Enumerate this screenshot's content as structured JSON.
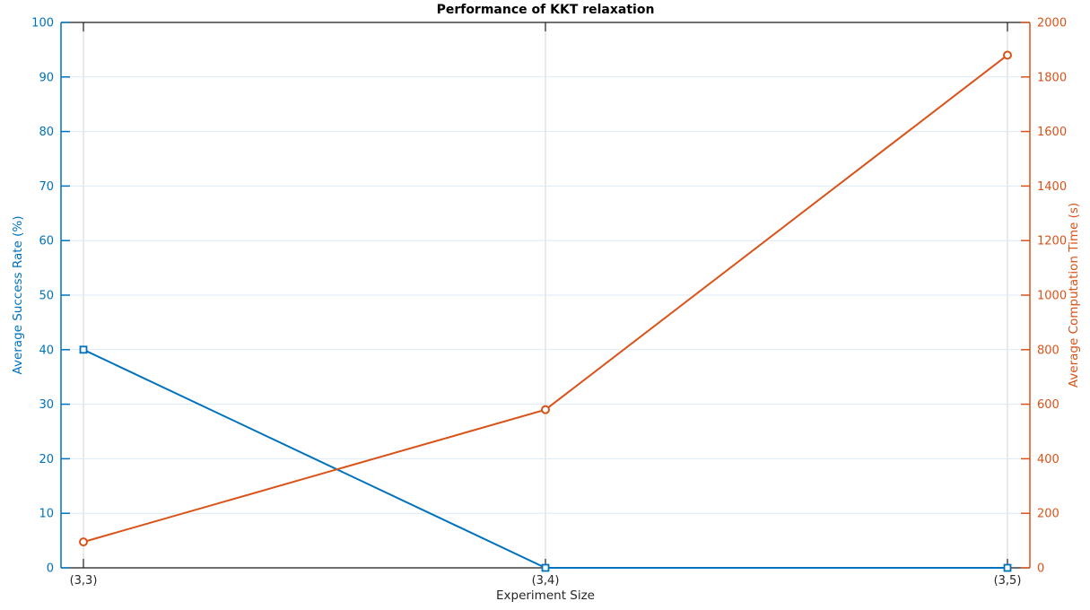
{
  "chart_data": {
    "type": "line",
    "title": "Performance of KKT relaxation",
    "xlabel": "Experiment Size",
    "categories": [
      "(3,3)",
      "(3,4)",
      "(3,5)"
    ],
    "series": [
      {
        "name": "Average Success Rate (%)",
        "axis": "left",
        "color": "#0072BD",
        "marker": "square",
        "values": [
          40,
          0,
          0
        ]
      },
      {
        "name": "Average Computation Time (s)",
        "axis": "right",
        "color": "#D95319",
        "marker": "circle",
        "values": [
          95,
          580,
          1880
        ]
      }
    ],
    "left_axis": {
      "label": "Average Success Rate (%)",
      "min": 0,
      "max": 100,
      "step": 10,
      "color": "#0072BD",
      "tick_labels": [
        "0",
        "10",
        "20",
        "30",
        "40",
        "50",
        "60",
        "70",
        "80",
        "90",
        "100"
      ]
    },
    "right_axis": {
      "label": "Average Computation Time (s)",
      "min": 0,
      "max": 2000,
      "step": 200,
      "color": "#D95319",
      "tick_labels": [
        "0",
        "200",
        "400",
        "600",
        "800",
        "1000",
        "1200",
        "1400",
        "1600",
        "1800",
        "2000"
      ]
    },
    "grid": true,
    "legend_position": "none",
    "colors": {
      "grid_horizontal": "#dce9f5",
      "grid_vertical": "#d6d6d6",
      "axis_box": "#1a1a1a",
      "x_tick_text": "#262626",
      "marker_fill": "#ffffff"
    }
  }
}
